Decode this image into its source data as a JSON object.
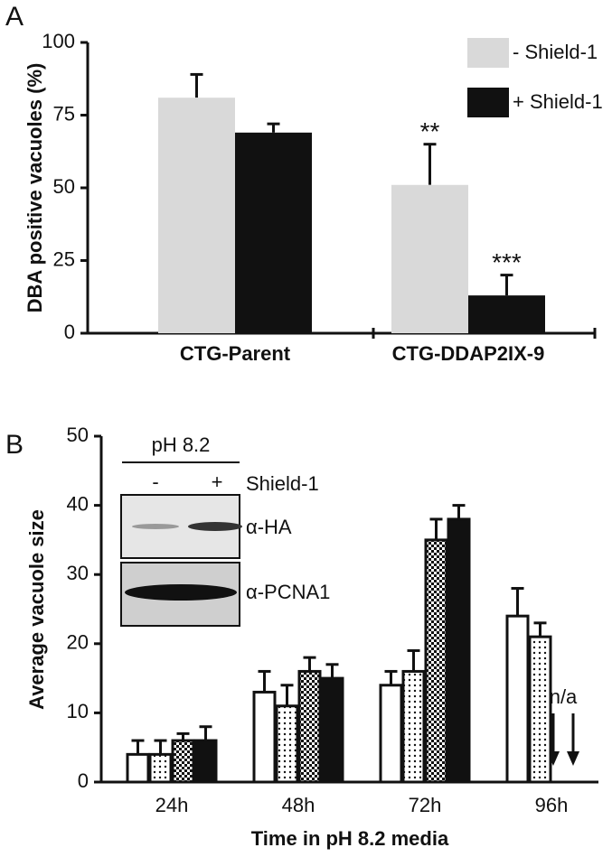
{
  "chart_data": [
    {
      "type": "bar",
      "panel": "A",
      "ylabel": "DBA positive vacuoles (%)",
      "categories": [
        "CTG-Parent",
        "CTG-DDAP2IX-9"
      ],
      "series": [
        {
          "name": "- Shield-1",
          "color": "#d9d9d9",
          "values": [
            81,
            51
          ],
          "errors": [
            8,
            14
          ]
        },
        {
          "name": "+ Shield-1",
          "color": "#111111",
          "values": [
            69,
            13
          ],
          "errors": [
            3,
            7
          ]
        }
      ],
      "annotations": [
        "**",
        "***"
      ],
      "ylim": [
        0,
        100
      ],
      "yticks": [
        0,
        25,
        50,
        75,
        100
      ],
      "legend": "top-right"
    },
    {
      "type": "bar",
      "panel": "B",
      "ylabel": "Average vacuole size",
      "xlabel": "Time in pH 8.2 media",
      "categories": [
        "24h",
        "48h",
        "72h",
        "96h"
      ],
      "series": [
        {
          "color": "#ffffff",
          "pattern": "solid",
          "values": [
            4,
            13,
            14,
            24
          ],
          "errors": [
            2,
            3,
            2,
            4
          ]
        },
        {
          "color": "#ffffff",
          "pattern": "dots",
          "values": [
            4,
            11,
            16,
            21
          ],
          "errors": [
            2,
            3,
            3,
            2
          ]
        },
        {
          "color": "#ffffff",
          "pattern": "checker",
          "values": [
            6,
            16,
            35,
            null
          ],
          "errors": [
            1,
            2,
            3,
            null
          ]
        },
        {
          "color": "#111111",
          "pattern": "solid",
          "values": [
            6,
            15,
            38,
            null
          ],
          "errors": [
            2,
            2,
            2,
            null
          ]
        }
      ],
      "annotations": [
        "n/a"
      ],
      "ylim": [
        0,
        50
      ],
      "yticks": [
        0,
        10,
        20,
        30,
        40,
        50
      ],
      "inset": {
        "title": "pH 8.2",
        "lanes": [
          "-",
          "+"
        ],
        "lane_label": "Shield-1",
        "blots": [
          "α-HA",
          "α-PCNA1"
        ]
      }
    }
  ]
}
